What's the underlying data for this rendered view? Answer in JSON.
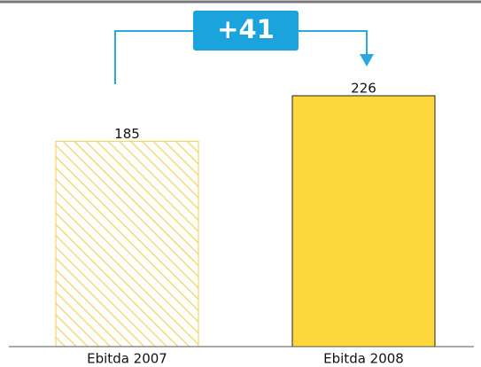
{
  "chart_data": {
    "type": "bar",
    "categories": [
      "Ebitda 2007",
      "Ebitda 2008"
    ],
    "values": [
      185,
      226
    ],
    "color": "#fdd83a",
    "patterns": [
      "hatched",
      "solid"
    ],
    "annotation": "+41"
  }
}
